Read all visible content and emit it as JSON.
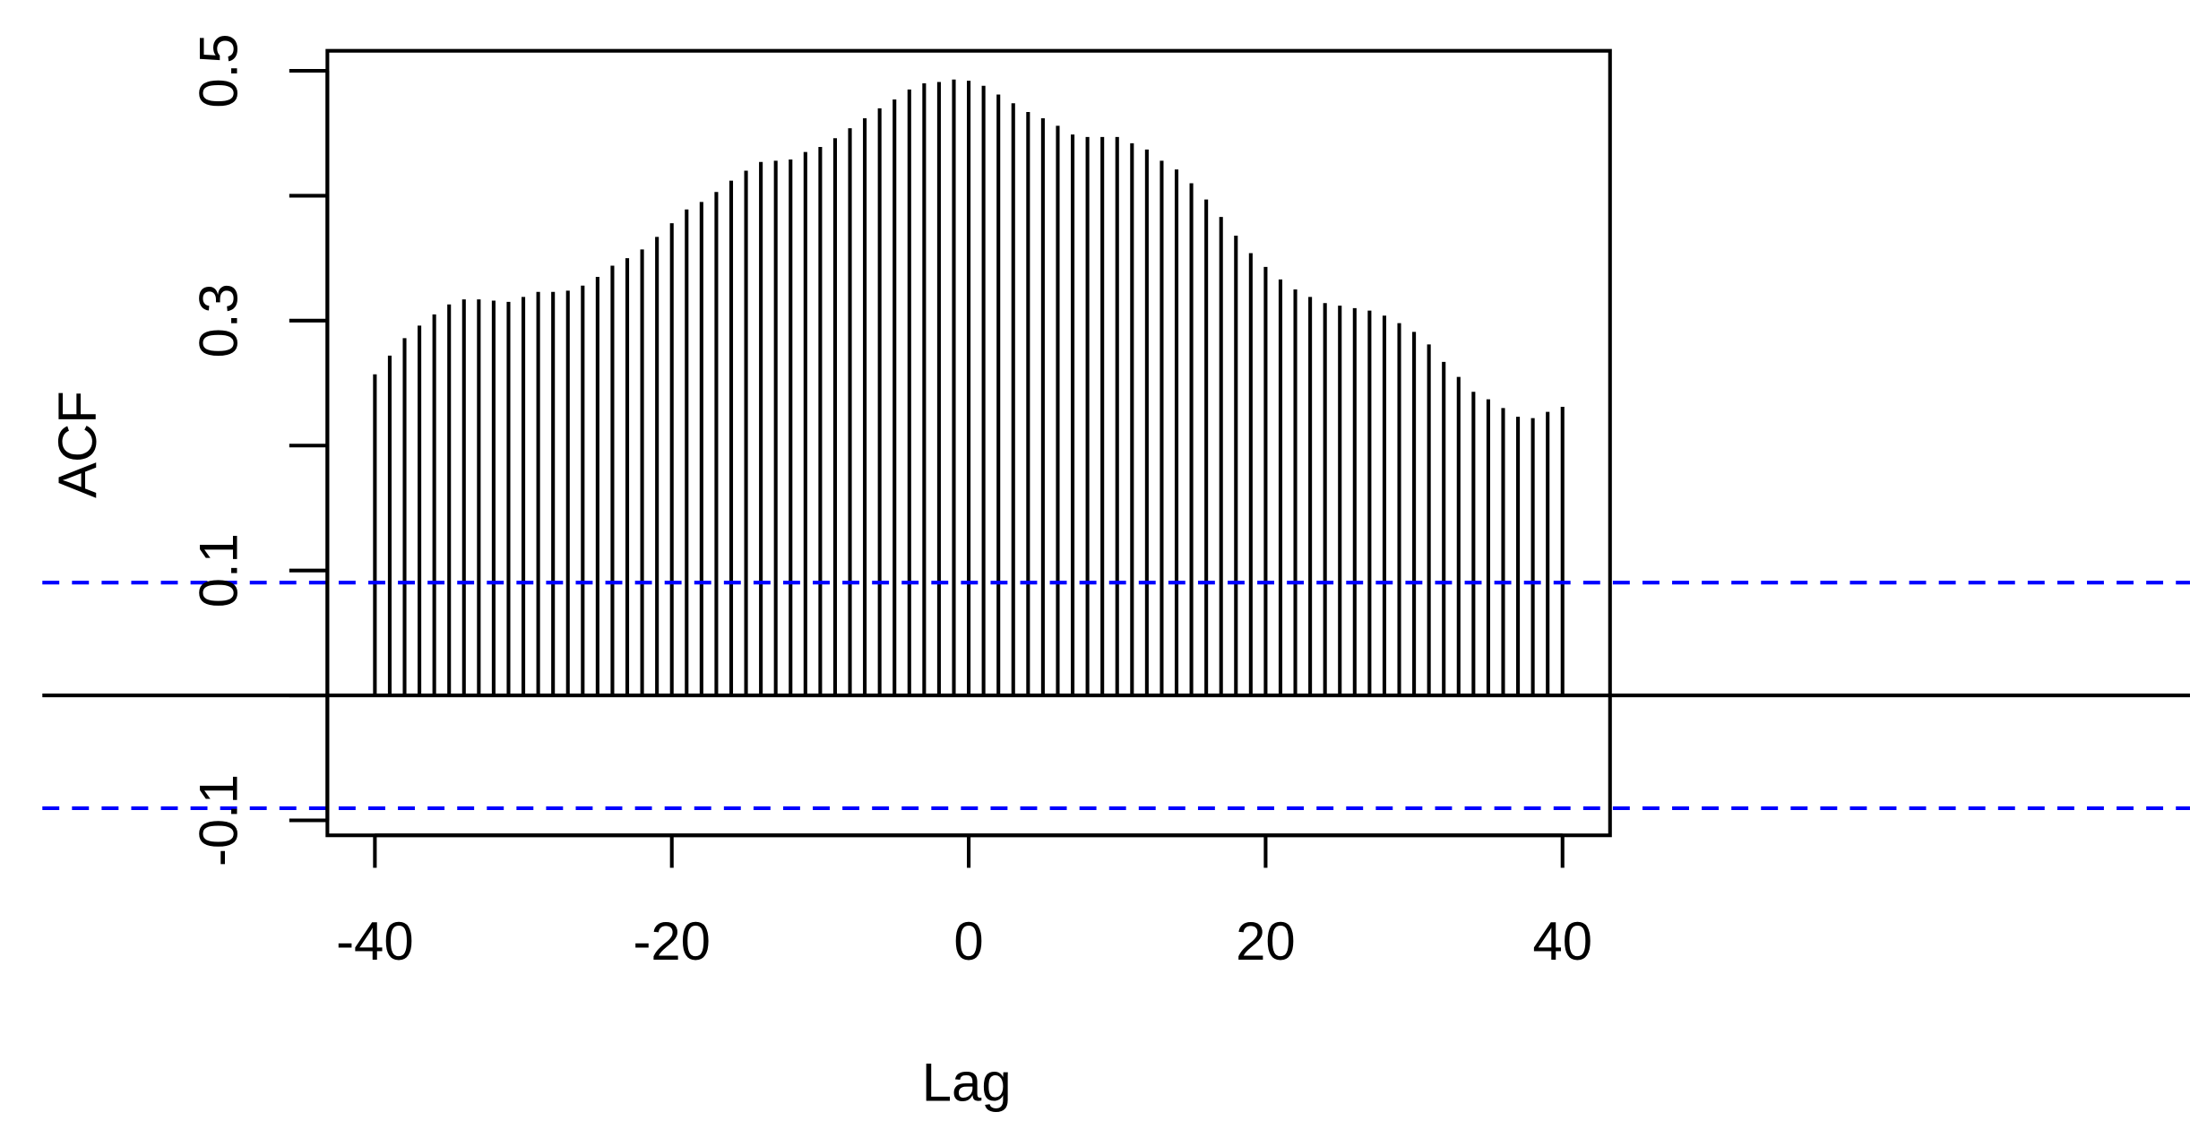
{
  "chart_data": {
    "type": "stem",
    "xlabel": "Lag",
    "ylabel": "ACF",
    "x": [
      -40,
      -39,
      -38,
      -37,
      -36,
      -35,
      -34,
      -33,
      -32,
      -31,
      -30,
      -29,
      -28,
      -27,
      -26,
      -25,
      -24,
      -23,
      -22,
      -21,
      -20,
      -19,
      -18,
      -17,
      -16,
      -15,
      -14,
      -13,
      -12,
      -11,
      -10,
      -9,
      -8,
      -7,
      -6,
      -5,
      -4,
      -3,
      -2,
      -1,
      0,
      1,
      2,
      3,
      4,
      5,
      6,
      7,
      8,
      9,
      10,
      11,
      12,
      13,
      14,
      15,
      16,
      17,
      18,
      19,
      20,
      21,
      22,
      23,
      24,
      25,
      26,
      27,
      28,
      29,
      30,
      31,
      32,
      33,
      34,
      35,
      36,
      37,
      38,
      39,
      40
    ],
    "values": [
      0.257,
      0.272,
      0.286,
      0.296,
      0.305,
      0.313,
      0.317,
      0.317,
      0.316,
      0.315,
      0.319,
      0.323,
      0.323,
      0.324,
      0.328,
      0.335,
      0.344,
      0.35,
      0.357,
      0.367,
      0.378,
      0.389,
      0.395,
      0.403,
      0.412,
      0.42,
      0.427,
      0.428,
      0.429,
      0.435,
      0.439,
      0.446,
      0.454,
      0.462,
      0.47,
      0.477,
      0.485,
      0.49,
      0.491,
      0.493,
      0.492,
      0.488,
      0.481,
      0.474,
      0.467,
      0.462,
      0.456,
      0.449,
      0.447,
      0.447,
      0.447,
      0.442,
      0.437,
      0.428,
      0.421,
      0.41,
      0.397,
      0.383,
      0.368,
      0.354,
      0.343,
      0.333,
      0.325,
      0.319,
      0.314,
      0.312,
      0.31,
      0.308,
      0.304,
      0.298,
      0.291,
      0.281,
      0.267,
      0.255,
      0.243,
      0.237,
      0.23,
      0.223,
      0.222,
      0.227,
      0.231
    ],
    "color": "#000000",
    "xlim": [
      -43.2,
      43.2
    ],
    "ylim": [
      -0.112,
      0.516
    ],
    "xticks": [
      -40,
      -20,
      0,
      20,
      40
    ],
    "yticks": [
      -0.1,
      0.1,
      0.3,
      0.5
    ],
    "yticks_unlabeled": [
      0,
      0.2,
      0.4
    ],
    "hlines": [
      {
        "value": 0,
        "color": "#000000",
        "dashed": false
      },
      {
        "value": 0.0903,
        "color": "#0000ff",
        "dashed": true
      },
      {
        "value": -0.0903,
        "color": "#0000ff",
        "dashed": true
      }
    ]
  }
}
